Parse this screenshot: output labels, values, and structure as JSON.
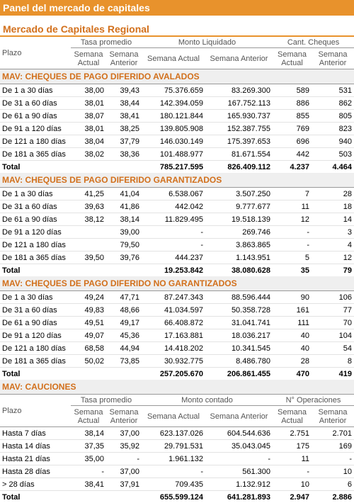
{
  "header": {
    "title": "Panel del mercado de capitales",
    "subtitle": "Mercado de Capitales Regional"
  },
  "table_header": {
    "plazo": "Plazo",
    "groups": [
      "Tasa promedio",
      "Monto Liquidado",
      "Cant. Cheques"
    ],
    "subgroups": [
      "Semana Actual",
      "Semana Anterior"
    ]
  },
  "sections": [
    {
      "title": "MAV: CHEQUES DE PAGO DIFERIDO AVALADOS",
      "rows": [
        [
          "De 1 a 30 días",
          "38,00",
          "39,43",
          "75.376.659",
          "83.269.300",
          "589",
          "531"
        ],
        [
          "De 31 a 60 días",
          "38,01",
          "38,44",
          "142.394.059",
          "167.752.113",
          "886",
          "862"
        ],
        [
          "De 61 a 90 días",
          "38,07",
          "38,41",
          "180.121.844",
          "165.930.737",
          "855",
          "805"
        ],
        [
          "De 91 a 120 días",
          "38,01",
          "38,25",
          "139.805.908",
          "152.387.755",
          "769",
          "823"
        ],
        [
          "De 121 a 180 días",
          "38,04",
          "37,79",
          "146.030.149",
          "175.397.653",
          "696",
          "940"
        ],
        [
          "De 181 a 365 días",
          "38,02",
          "38,36",
          "101.488.977",
          "81.671.554",
          "442",
          "503"
        ]
      ],
      "total": {
        "label": "Total",
        "cells": [
          "785.217.595",
          "826.409.112",
          "4.237",
          "4.464"
        ]
      }
    },
    {
      "title": "MAV: CHEQUES DE PAGO DIFERIDO GARANTIZADOS",
      "rows": [
        [
          "De 1 a 30 días",
          "41,25",
          "41,04",
          "6.538.067",
          "3.507.250",
          "7",
          "28"
        ],
        [
          "De 31 a 60 días",
          "39,63",
          "41,86",
          "442.042",
          "9.777.677",
          "11",
          "18"
        ],
        [
          "De 61 a 90 días",
          "38,12",
          "38,14",
          "11.829.495",
          "19.518.139",
          "12",
          "14"
        ],
        [
          "De 91 a 120 días",
          null,
          "39,00",
          "-",
          "269.746",
          "-",
          "3"
        ],
        [
          "De 121 a 180 días",
          null,
          "79,50",
          "-",
          "3.863.865",
          "-",
          "4"
        ],
        [
          "De 181 a 365 días",
          "39,50",
          "39,76",
          "444.237",
          "1.143.951",
          "5",
          "12"
        ]
      ],
      "total": {
        "label": "Total",
        "cells": [
          "19.253.842",
          "38.080.628",
          "35",
          "79"
        ]
      }
    },
    {
      "title": "MAV: CHEQUES DE PAGO DIFERIDO NO GARANTIZADOS",
      "rows": [
        [
          "De 1 a 30 días",
          "49,24",
          "47,71",
          "87.247.343",
          "88.596.444",
          "90",
          "106"
        ],
        [
          "De 31 a 60 días",
          "49,83",
          "48,66",
          "41.034.597",
          "50.358.728",
          "161",
          "77"
        ],
        [
          "De 61 a 90 días",
          "49,51",
          "49,17",
          "66.408.872",
          "31.041.741",
          "111",
          "70"
        ],
        [
          "De 91 a 120 días",
          "49,07",
          "45,36",
          "17.163.881",
          "18.036.217",
          "40",
          "104"
        ],
        [
          "De 121 a 180 días",
          "68,58",
          "44,94",
          "14.418.202",
          "10.341.545",
          "40",
          "54"
        ],
        [
          "De 181 a 365 días",
          "50,02",
          "73,85",
          "30.932.775",
          "8.486.780",
          "28",
          "8"
        ]
      ],
      "total": {
        "label": "Total",
        "cells": [
          "257.205.670",
          "206.861.455",
          "470",
          "419"
        ]
      }
    },
    {
      "title": "MAV: CAUCIONES",
      "header": {
        "plazo": "Plazo",
        "groups": [
          "Tasa promedio",
          "Monto contado",
          "N° Operaciones"
        ],
        "subgroups": [
          "Semana Actual",
          "Semana Anterior"
        ]
      },
      "rows": [
        [
          "Hasta 7 días",
          "38,14",
          "37,00",
          "623.137.026",
          "604.544.636",
          "2.751",
          "2.701"
        ],
        [
          "Hasta 14 días",
          "37,35",
          "35,92",
          "29.791.531",
          "35.043.045",
          "175",
          "169"
        ],
        [
          "Hasta 21 días",
          "35,00",
          "-",
          "1.961.132",
          "-",
          "11",
          "-"
        ],
        [
          "Hasta 28 días",
          "-",
          "37,00",
          "-",
          "561.300",
          "-",
          "10"
        ],
        [
          "> 28 días",
          "38,41",
          "37,91",
          "709.435",
          "1.132.912",
          "10",
          "6"
        ]
      ],
      "total": {
        "label": "Total",
        "cells": [
          "655.599.124",
          "641.281.893",
          "2.947",
          "2.886"
        ]
      }
    }
  ]
}
